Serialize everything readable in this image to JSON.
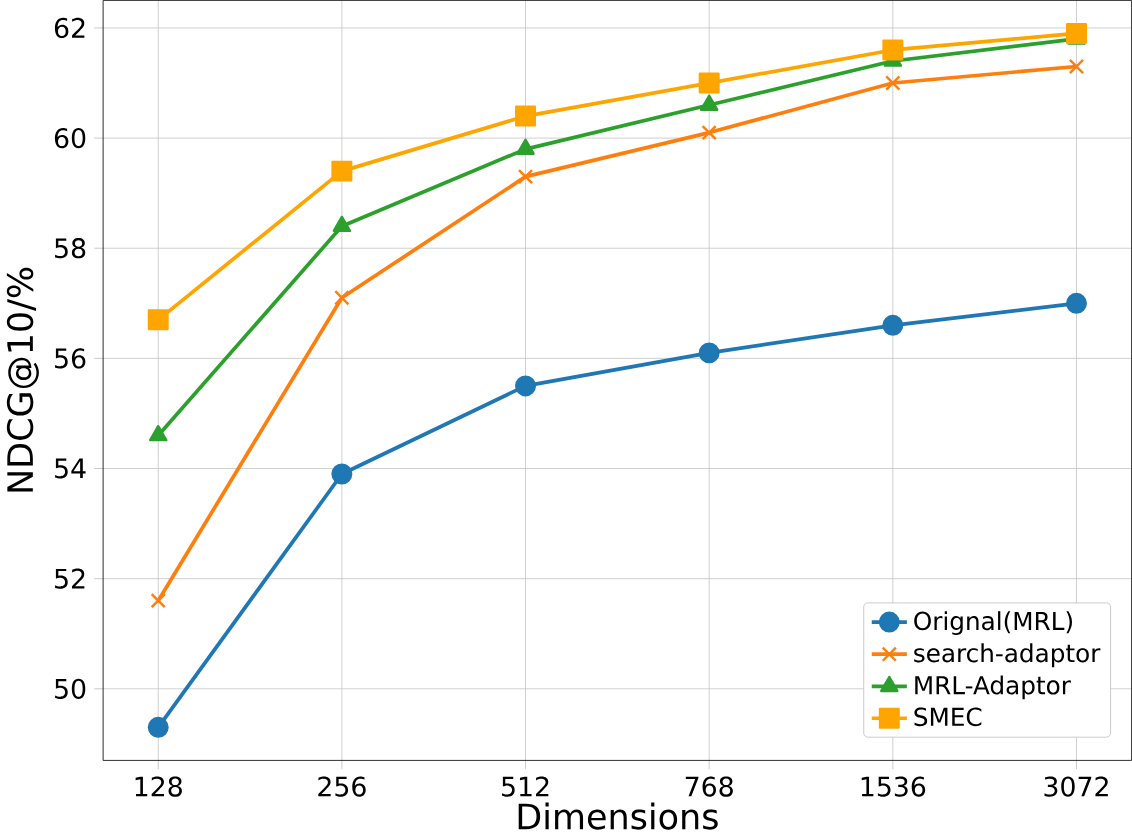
{
  "chart_data": {
    "type": "line",
    "xlabel": "Dimensions",
    "ylabel": "NDCG@10/%",
    "categories": [
      "128",
      "256",
      "512",
      "768",
      "1536",
      "3072"
    ],
    "ylim": [
      48.7,
      62.5
    ],
    "yticks": [
      50,
      52,
      54,
      56,
      58,
      60,
      62
    ],
    "grid": true,
    "legend": "bottom right",
    "series": [
      {
        "name": "Orignal(MRL)",
        "color": "#1f77b4",
        "marker": "circle",
        "values": [
          49.3,
          53.9,
          55.5,
          56.1,
          56.6,
          57.0
        ]
      },
      {
        "name": "search-adaptor",
        "color": "#ff7f0e",
        "marker": "cross",
        "values": [
          51.6,
          57.1,
          59.3,
          60.1,
          61.0,
          61.3
        ]
      },
      {
        "name": "MRL-Adaptor",
        "color": "#2ca02c",
        "marker": "triangle",
        "values": [
          54.6,
          58.4,
          59.8,
          60.6,
          61.4,
          61.8
        ]
      },
      {
        "name": "SMEC",
        "color": "#ffa500",
        "marker": "square",
        "values": [
          56.7,
          59.4,
          60.4,
          61.0,
          61.6,
          61.9
        ]
      }
    ]
  }
}
